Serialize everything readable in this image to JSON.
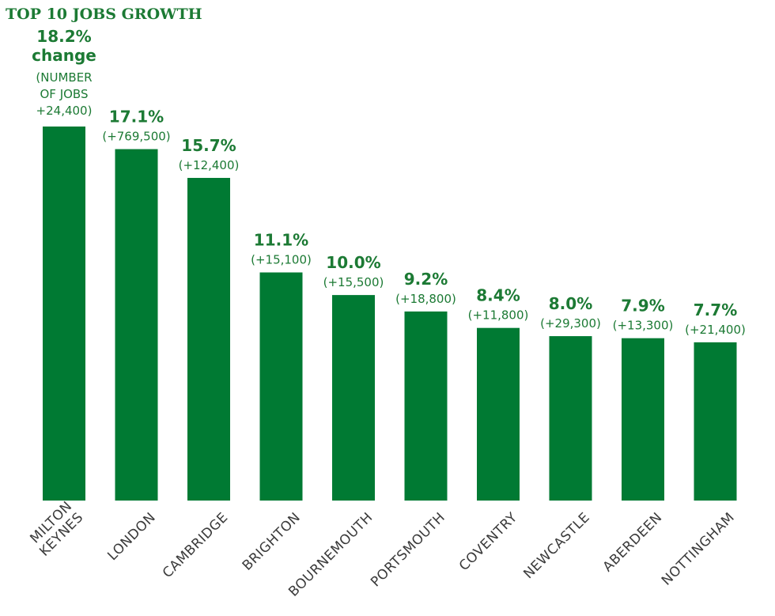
{
  "chart_data": {
    "type": "bar",
    "title": "TOP 10 JOBS GROWTH",
    "categories": [
      "MILTON KEYNES",
      "LONDON",
      "CAMBRIDGE",
      "BRIGHTON",
      "BOURNEMOUTH",
      "PORTSMOUTH",
      "COVENTRY",
      "NEWCASTLE",
      "ABERDEEN",
      "NOTTINGHAM"
    ],
    "category_lines": [
      [
        "MILTON",
        "KEYNES"
      ],
      [
        "LONDON"
      ],
      [
        "CAMBRIDGE"
      ],
      [
        "BRIGHTON"
      ],
      [
        "BOURNEMOUTH"
      ],
      [
        "PORTSMOUTH"
      ],
      [
        "COVENTRY"
      ],
      [
        "NEWCASTLE"
      ],
      [
        "ABERDEEN"
      ],
      [
        "NOTTINGHAM"
      ]
    ],
    "values": [
      18.2,
      17.1,
      15.7,
      11.1,
      10.0,
      9.2,
      8.4,
      8.0,
      7.9,
      7.7
    ],
    "value_labels": [
      "18.2%",
      "17.1%",
      "15.7%",
      "11.1%",
      "10.0%",
      "9.2%",
      "8.4%",
      "8.0%",
      "7.9%",
      "7.7%"
    ],
    "first_label_extra": "change",
    "first_label_sub": [
      "(NUMBER",
      "OF JOBS",
      "+24,400)"
    ],
    "job_changes": [
      "+24,400",
      "(+769,500)",
      "(+12,400)",
      "(+15,100)",
      "(+15,500)",
      "(+18,800)",
      "(+11,800)",
      "(+29,300)",
      "(+13,300)",
      "(+21,400)"
    ],
    "ylim": [
      0,
      18.2
    ],
    "xlabel": "",
    "ylabel": "",
    "grid": false,
    "legend": "none",
    "colors": {
      "bar": "#007a33",
      "label": "#1c7a34",
      "category": "#3a3a3a"
    }
  }
}
